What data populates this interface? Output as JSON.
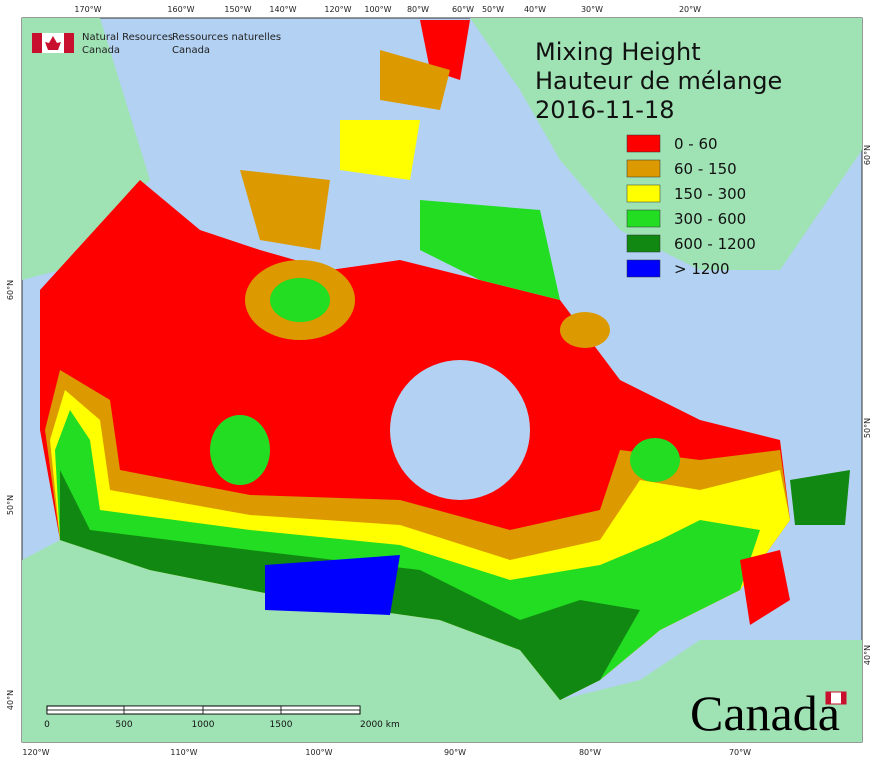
{
  "header": {
    "agency_en": [
      "Natural Resources",
      "Canada"
    ],
    "agency_fr": [
      "Ressources naturelles",
      "Canada"
    ]
  },
  "title": [
    "Mixing Height",
    "Hauteur de mélange",
    "2016-11-18"
  ],
  "legend": [
    {
      "label": "0 - 60",
      "color": "#ff0000"
    },
    {
      "label": "60 - 150",
      "color": "#dc9a00"
    },
    {
      "label": "150 - 300",
      "color": "#ffff00"
    },
    {
      "label": "300 - 600",
      "color": "#22dd22"
    },
    {
      "label": "600 - 1200",
      "color": "#118811"
    },
    {
      "label": "> 1200",
      "color": "#0000ff"
    }
  ],
  "graticule": {
    "top": [
      "170°W",
      "160°W",
      "150°W",
      "140°W",
      "120°W",
      "100°W",
      "80°W",
      "60°W",
      "50°W",
      "40°W",
      "30°W",
      "20°W"
    ],
    "bottom": [
      "120°W",
      "110°W",
      "100°W",
      "90°W",
      "80°W",
      "70°W"
    ],
    "left": [
      "60°N",
      "50°N",
      "40°N"
    ],
    "right": [
      "60°N",
      "50°N",
      "40°N"
    ]
  },
  "scale_bar": [
    "0",
    "500",
    "1000",
    "1500",
    "2000 km"
  ],
  "wordmark": "Canada"
}
